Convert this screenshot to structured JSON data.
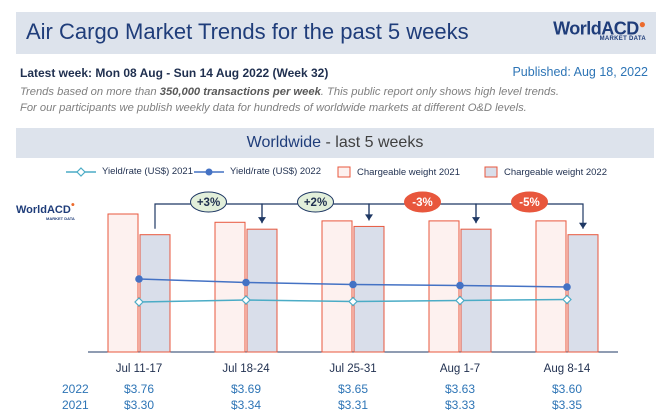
{
  "header": {
    "title": "Air Cargo Market Trends for the past 5 weeks",
    "logo_main": "WorldACD",
    "logo_sub": "MARKET DATA"
  },
  "latest_week": "Latest week:  Mon 08 Aug - Sun 14 Aug 2022 (Week 32)",
  "published": "Published: Aug 18, 2022",
  "description": {
    "part1": "Trends based on more than ",
    "bold": "350,000 transactions per week",
    "part2": ". This public report only shows high level trends.",
    "line2": "For our participants we publish weekly data for hundreds of worldwide markets at different O&D levels."
  },
  "section": {
    "title": "Worldwide",
    "subtitle": " - last 5 weeks"
  },
  "colors": {
    "yield_2021": "#4bacc6",
    "yield_2022": "#4472c4",
    "bar_2021_fill": "#fdf1ef",
    "bar_2021_stroke": "#e8573d",
    "bar_2022_fill": "#d9deea",
    "bar_2022_stroke": "#e8573d",
    "change_positive": "#e2efda",
    "change_negative": "#e8573d",
    "connector": "#1f3864"
  },
  "chart_data": {
    "type": "bar",
    "categories": [
      "Jul 11-17",
      "Jul 18-24",
      "Jul 25-31",
      "Aug 1-7",
      "Aug 8-14"
    ],
    "legend": [
      "Yield/rate (US$) 2021",
      "Yield/rate (US$) 2022",
      "Chargeable weight 2021",
      "Chargeable weight 2022"
    ],
    "legend_position": "top",
    "series": [
      {
        "name": "Chargeable weight 2021",
        "type": "bar",
        "values": [
          100,
          94,
          95,
          95,
          95
        ]
      },
      {
        "name": "Chargeable weight 2022",
        "type": "bar",
        "values": [
          85,
          89,
          91,
          89,
          85
        ]
      },
      {
        "name": "Yield/rate (US$) 2022",
        "type": "line",
        "values": [
          3.76,
          3.69,
          3.65,
          3.63,
          3.6
        ],
        "labels": [
          "$3.76",
          "$3.69",
          "$3.65",
          "$3.63",
          "$3.60"
        ]
      },
      {
        "name": "Yield/rate (US$) 2021",
        "type": "line",
        "values": [
          3.3,
          3.34,
          3.31,
          3.33,
          3.35
        ],
        "labels": [
          "$3.30",
          "$3.34",
          "$3.31",
          "$3.33",
          "$3.35"
        ]
      }
    ],
    "changes": [
      {
        "label": "+3%",
        "value": 3
      },
      {
        "label": "+2%",
        "value": 2
      },
      {
        "label": "-3%",
        "value": -3
      },
      {
        "label": "-5%",
        "value": -5
      }
    ],
    "row_labels": [
      "2022",
      "2021"
    ],
    "grid": false
  }
}
